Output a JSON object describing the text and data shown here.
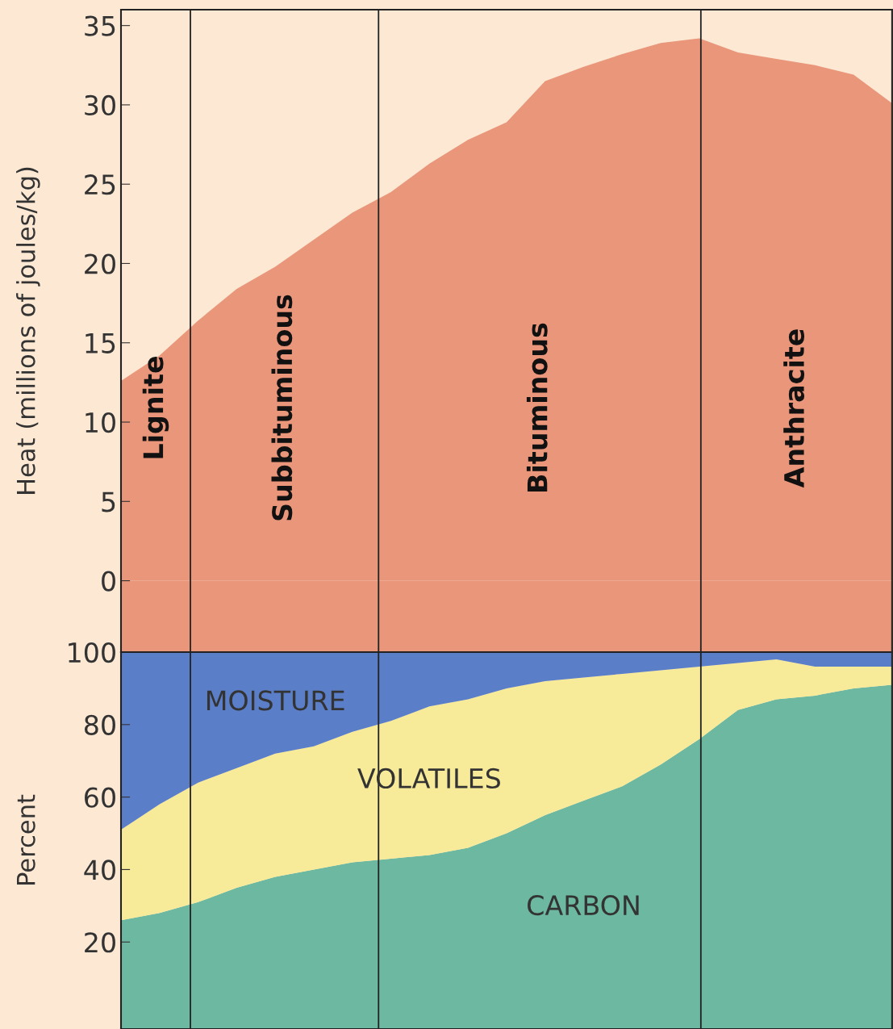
{
  "chart_data": [
    {
      "type": "area",
      "ylabel": "Heat (millions of joules/kg)",
      "categories": [
        null,
        null,
        null,
        null,
        null,
        null,
        null,
        null,
        null,
        null,
        null,
        null,
        null,
        null,
        null,
        null,
        null,
        null,
        null,
        null,
        null
      ],
      "values": [
        12.6,
        14.2,
        16.4,
        18.4,
        19.8,
        21.5,
        23.2,
        24.5,
        26.3,
        27.8,
        28.9,
        31.5,
        32.4,
        33.2,
        33.9,
        34.2,
        33.3,
        32.9,
        32.5,
        31.9,
        30.1
      ],
      "color": "#e9967a",
      "ylim": [
        -4.5,
        36
      ],
      "yticks": [
        0,
        5,
        10,
        15,
        20,
        25,
        30,
        35
      ],
      "tick_labels": "y",
      "annotations": [
        "Lignite",
        "Subbituminous",
        "Bituminous",
        "Anthracite"
      ]
    },
    {
      "type": "area",
      "stacked": true,
      "ylabel": "Percent",
      "categories": [
        null,
        null,
        null,
        null,
        null,
        null,
        null,
        null,
        null,
        null,
        null,
        null,
        null,
        null,
        null,
        null,
        null,
        null,
        null,
        null,
        null
      ],
      "series": [
        {
          "name": "CARBON",
          "color": "#6cb8a0",
          "values": [
            26,
            28,
            31,
            35,
            38,
            40,
            42,
            43,
            44,
            46,
            50,
            55,
            59,
            63,
            69,
            76,
            84,
            87,
            88,
            90,
            91
          ]
        },
        {
          "name": "VOLATILES",
          "color": "#f7eb9a",
          "values": [
            25,
            30,
            33,
            33,
            34,
            34,
            36,
            38,
            41,
            41,
            40,
            37,
            34,
            31,
            26,
            20,
            13,
            11,
            8,
            6,
            5
          ]
        },
        {
          "name": "MOISTURE",
          "color": "#5b7ec8",
          "values": [
            49,
            42,
            36,
            32,
            28,
            26,
            22,
            19,
            15,
            13,
            10,
            8,
            7,
            6,
            5,
            4,
            3,
            2,
            4,
            4,
            4
          ]
        }
      ],
      "ylim": [
        -4,
        100
      ],
      "yticks": [
        20,
        40,
        60,
        80,
        100
      ],
      "tick_labels": "y"
    }
  ]
}
